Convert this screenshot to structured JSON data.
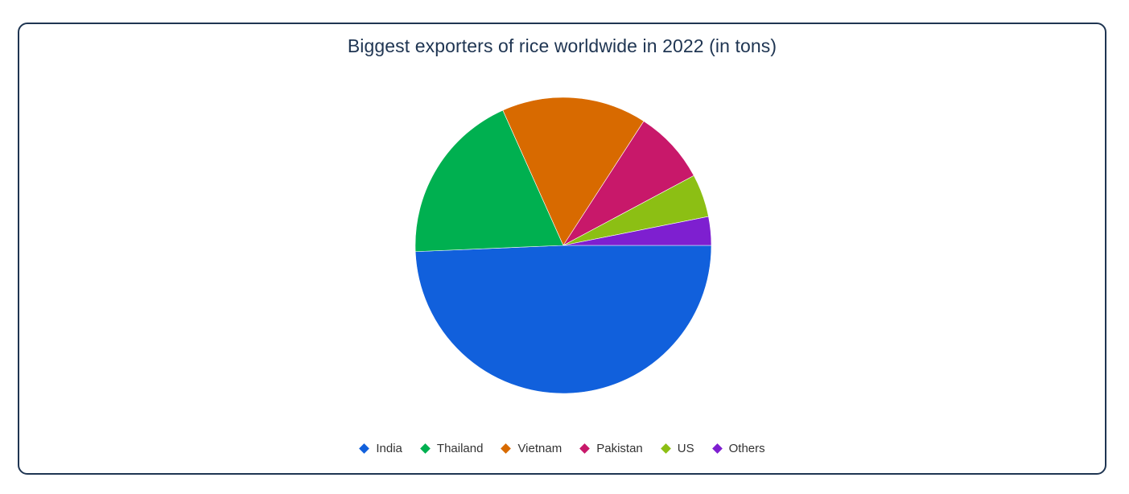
{
  "chart_data": {
    "type": "pie",
    "title": "Biggest exporters of rice worldwide in 2022 (in tons)",
    "legend_position": "bottom",
    "slices": [
      {
        "label": "India",
        "value": 22.1,
        "color": "#1160dc"
      },
      {
        "label": "Thailand",
        "value": 8.5,
        "color": "#00b050"
      },
      {
        "label": "Vietnam",
        "value": 7.1,
        "color": "#d86a00"
      },
      {
        "label": "Pakistan",
        "value": 3.6,
        "color": "#c8186a"
      },
      {
        "label": "US",
        "value": 2.1,
        "color": "#8cbf14"
      },
      {
        "label": "Others",
        "value": 1.4,
        "color": "#7e1fd0"
      }
    ]
  }
}
